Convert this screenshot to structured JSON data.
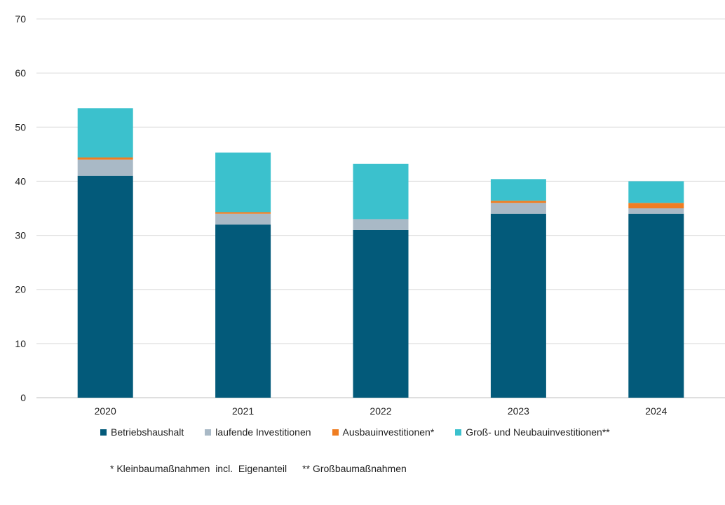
{
  "chart_data": {
    "type": "bar",
    "stacked": true,
    "title": "",
    "xlabel": "",
    "ylabel": "",
    "categories": [
      "2020",
      "2021",
      "2022",
      "2023",
      "2024"
    ],
    "ylim": [
      0,
      70
    ],
    "yticks": [
      0,
      10,
      20,
      30,
      40,
      50,
      60,
      70
    ],
    "grid": true,
    "legend_position": "bottom",
    "series": [
      {
        "name": "Betriebshaushalt",
        "color": "#035a7a",
        "values": [
          41,
          32,
          31,
          34,
          34
        ]
      },
      {
        "name": "laufende Investitionen",
        "color": "#a9b9c6",
        "values": [
          3,
          2,
          2,
          2,
          1
        ]
      },
      {
        "name": "Ausbauinvestitionen*",
        "color": "#ef7d22",
        "values": [
          0.4,
          0.3,
          0,
          0.4,
          1
        ]
      },
      {
        "name": "Groß- und Neubauinvestitionen**",
        "color": "#3bc1cd",
        "values": [
          9.1,
          11,
          10.2,
          4,
          4
        ]
      }
    ]
  },
  "footnotes": [
    "* Kleinbaumaßnahmen  incl.  Eigenanteil",
    "** Großbaumaßnahmen"
  ]
}
